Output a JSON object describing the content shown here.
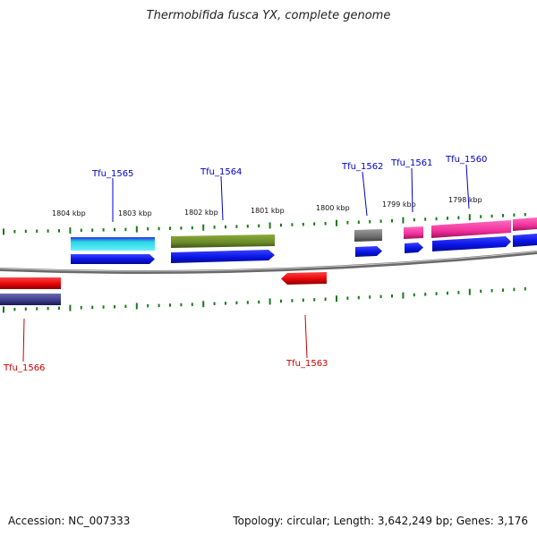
{
  "title": "Thermobifida fusca YX, complete genome",
  "footer": {
    "accession": "Accession: NC_007333",
    "summary": "Topology: circular; Length: 3,642,249 bp; Genes: 3,176"
  },
  "ruler": {
    "labels": [
      "1804 kbp",
      "1803 kbp",
      "1802 kbp",
      "1801 kbp",
      "1800 kbp",
      "1799 kbp",
      "1798 kbp"
    ]
  },
  "genes": [
    {
      "name": "Tfu_1565",
      "strand": "forward",
      "label_color": "#0000cc"
    },
    {
      "name": "Tfu_1564",
      "strand": "forward",
      "label_color": "#0000cc"
    },
    {
      "name": "Tfu_1562",
      "strand": "forward",
      "label_color": "#0000cc"
    },
    {
      "name": "Tfu_1561",
      "strand": "forward",
      "label_color": "#0000cc"
    },
    {
      "name": "Tfu_1560",
      "strand": "forward",
      "label_color": "#0000cc"
    },
    {
      "name": "Tfu_1566",
      "strand": "reverse",
      "label_color": "#cc0000"
    },
    {
      "name": "Tfu_1563",
      "strand": "reverse",
      "label_color": "#cc0000"
    }
  ],
  "colors": {
    "backbone": "#8a8a8a",
    "cds_forward": "#0a14e6",
    "cds_reverse": "#e6060a",
    "tick": "#1a7a1a",
    "cyan_track": "#29d6e6",
    "olive_track": "#6b8a2a",
    "gray_track": "#6e6e6e",
    "pink_track": "#f0309a",
    "navy_track": "#3a3a8a"
  }
}
